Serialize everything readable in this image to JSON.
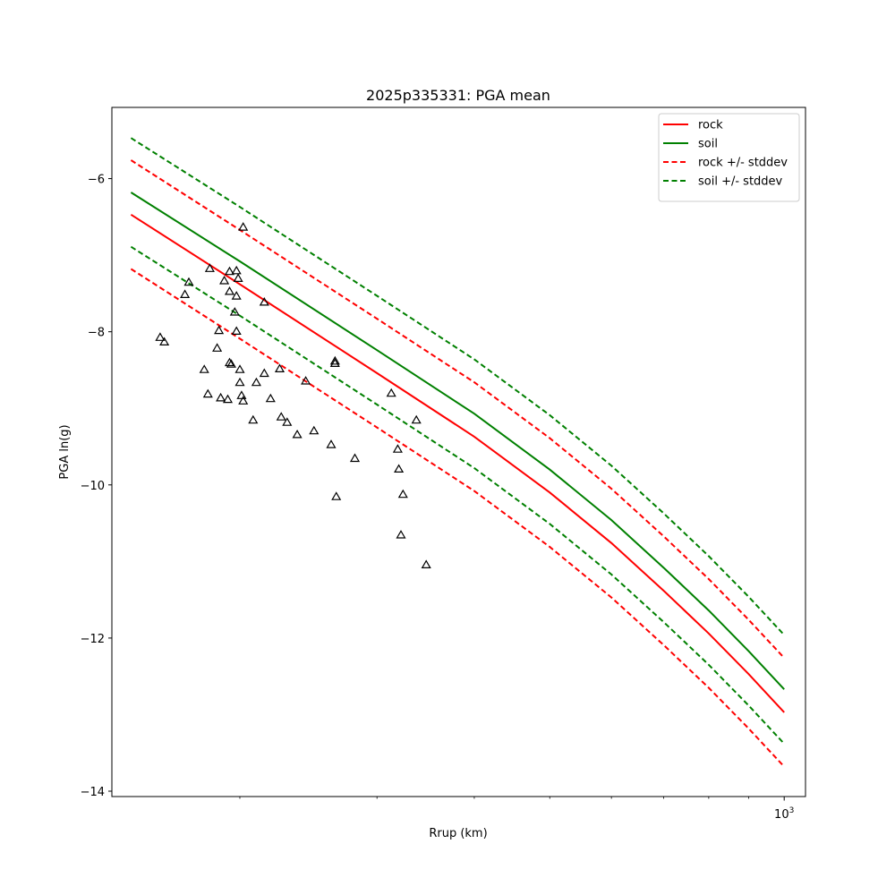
{
  "chart_data": {
    "type": "line",
    "title": "2025p335331: PGA mean",
    "xlabel": "Rrup (km)",
    "ylabel": "PGA ln(g)",
    "xscale": "log",
    "xlim": [
      137,
      1065
    ],
    "ylim": [
      -14.07,
      -5.07
    ],
    "y_ticks": [
      -14,
      -12,
      -10,
      -8,
      -6
    ],
    "y_tick_labels": [
      "−14",
      "−12",
      "−10",
      "−8",
      "−6"
    ],
    "x_major_ticks": [
      1000
    ],
    "x_major_tick_labels": [
      {
        "base": "10",
        "exp": "3"
      }
    ],
    "x_minor_ticks": [
      200,
      300,
      400,
      500,
      600,
      700,
      800,
      900
    ],
    "grid": false,
    "legend_position": "top-right",
    "series": [
      {
        "name": "rock",
        "color": "#ff0000",
        "style": "solid",
        "points": [
          [
            145,
            -6.47
          ],
          [
            200,
            -7.38
          ],
          [
            300,
            -8.54
          ],
          [
            400,
            -9.37
          ],
          [
            500,
            -10.1
          ],
          [
            600,
            -10.76
          ],
          [
            700,
            -11.38
          ],
          [
            800,
            -11.94
          ],
          [
            900,
            -12.47
          ],
          [
            1000,
            -12.97
          ]
        ]
      },
      {
        "name": "soil",
        "color": "#008000",
        "style": "solid",
        "points": [
          [
            145,
            -6.18
          ],
          [
            200,
            -7.08
          ],
          [
            300,
            -8.24
          ],
          [
            400,
            -9.07
          ],
          [
            500,
            -9.8
          ],
          [
            600,
            -10.46
          ],
          [
            700,
            -11.08
          ],
          [
            800,
            -11.64
          ],
          [
            900,
            -12.17
          ],
          [
            1000,
            -12.67
          ]
        ]
      },
      {
        "name": "rock +/- stddev",
        "color": "#ff0000",
        "style": "dashed",
        "points": [
          [
            145,
            -5.76
          ],
          [
            200,
            -6.67
          ],
          [
            300,
            -7.83
          ],
          [
            400,
            -8.66
          ],
          [
            500,
            -9.39
          ],
          [
            600,
            -10.05
          ],
          [
            700,
            -10.67
          ],
          [
            800,
            -11.23
          ],
          [
            900,
            -11.76
          ],
          [
            1000,
            -12.26
          ]
        ]
      },
      {
        "name": "rock +/- stddev",
        "legend": false,
        "color": "#ff0000",
        "style": "dashed",
        "points": [
          [
            145,
            -7.18
          ],
          [
            200,
            -8.09
          ],
          [
            300,
            -9.25
          ],
          [
            400,
            -10.08
          ],
          [
            500,
            -10.81
          ],
          [
            600,
            -11.47
          ],
          [
            700,
            -12.09
          ],
          [
            800,
            -12.65
          ],
          [
            900,
            -13.18
          ],
          [
            1000,
            -13.68
          ]
        ]
      },
      {
        "name": "soil +/- stddev",
        "color": "#008000",
        "style": "dashed",
        "points": [
          [
            145,
            -5.47
          ],
          [
            200,
            -6.37
          ],
          [
            300,
            -7.53
          ],
          [
            400,
            -8.36
          ],
          [
            500,
            -9.09
          ],
          [
            600,
            -9.75
          ],
          [
            700,
            -10.37
          ],
          [
            800,
            -10.93
          ],
          [
            900,
            -11.46
          ],
          [
            1000,
            -11.96
          ]
        ]
      },
      {
        "name": "soil +/- stddev",
        "legend": false,
        "color": "#008000",
        "style": "dashed",
        "points": [
          [
            145,
            -6.89
          ],
          [
            200,
            -7.79
          ],
          [
            300,
            -8.95
          ],
          [
            400,
            -9.78
          ],
          [
            500,
            -10.51
          ],
          [
            600,
            -11.17
          ],
          [
            700,
            -11.79
          ],
          [
            800,
            -12.35
          ],
          [
            900,
            -12.88
          ],
          [
            1000,
            -13.38
          ]
        ]
      }
    ],
    "observations": {
      "marker": "triangle-open",
      "color": "#000000",
      "points": [
        [
          158,
          -8.08
        ],
        [
          160,
          -8.14
        ],
        [
          170,
          -7.52
        ],
        [
          172,
          -7.36
        ],
        [
          180,
          -8.5
        ],
        [
          182,
          -8.82
        ],
        [
          183,
          -7.18
        ],
        [
          187,
          -8.22
        ],
        [
          188,
          -7.99
        ],
        [
          189,
          -8.87
        ],
        [
          191,
          -7.34
        ],
        [
          193,
          -8.89
        ],
        [
          194,
          -8.41
        ],
        [
          194,
          -7.48
        ],
        [
          194,
          -7.22
        ],
        [
          195,
          -8.43
        ],
        [
          197,
          -7.75
        ],
        [
          198,
          -7.54
        ],
        [
          198,
          -8.0
        ],
        [
          198,
          -7.21
        ],
        [
          199,
          -7.31
        ],
        [
          200,
          -8.5
        ],
        [
          200,
          -8.67
        ],
        [
          201,
          -8.84
        ],
        [
          202,
          -8.91
        ],
        [
          202,
          -6.64
        ],
        [
          208,
          -9.16
        ],
        [
          210,
          -8.67
        ],
        [
          215,
          -7.62
        ],
        [
          215,
          -8.55
        ],
        [
          219,
          -8.88
        ],
        [
          225,
          -8.49
        ],
        [
          226,
          -9.12
        ],
        [
          230,
          -9.19
        ],
        [
          237,
          -9.35
        ],
        [
          243,
          -8.65
        ],
        [
          249,
          -9.3
        ],
        [
          262,
          -9.48
        ],
        [
          265,
          -8.39
        ],
        [
          265,
          -8.42
        ],
        [
          266,
          -10.16
        ],
        [
          281,
          -9.66
        ],
        [
          313,
          -8.81
        ],
        [
          319,
          -9.54
        ],
        [
          320,
          -9.8
        ],
        [
          322,
          -10.66
        ],
        [
          324,
          -10.13
        ],
        [
          337,
          -9.16
        ],
        [
          347,
          -11.05
        ]
      ]
    }
  }
}
